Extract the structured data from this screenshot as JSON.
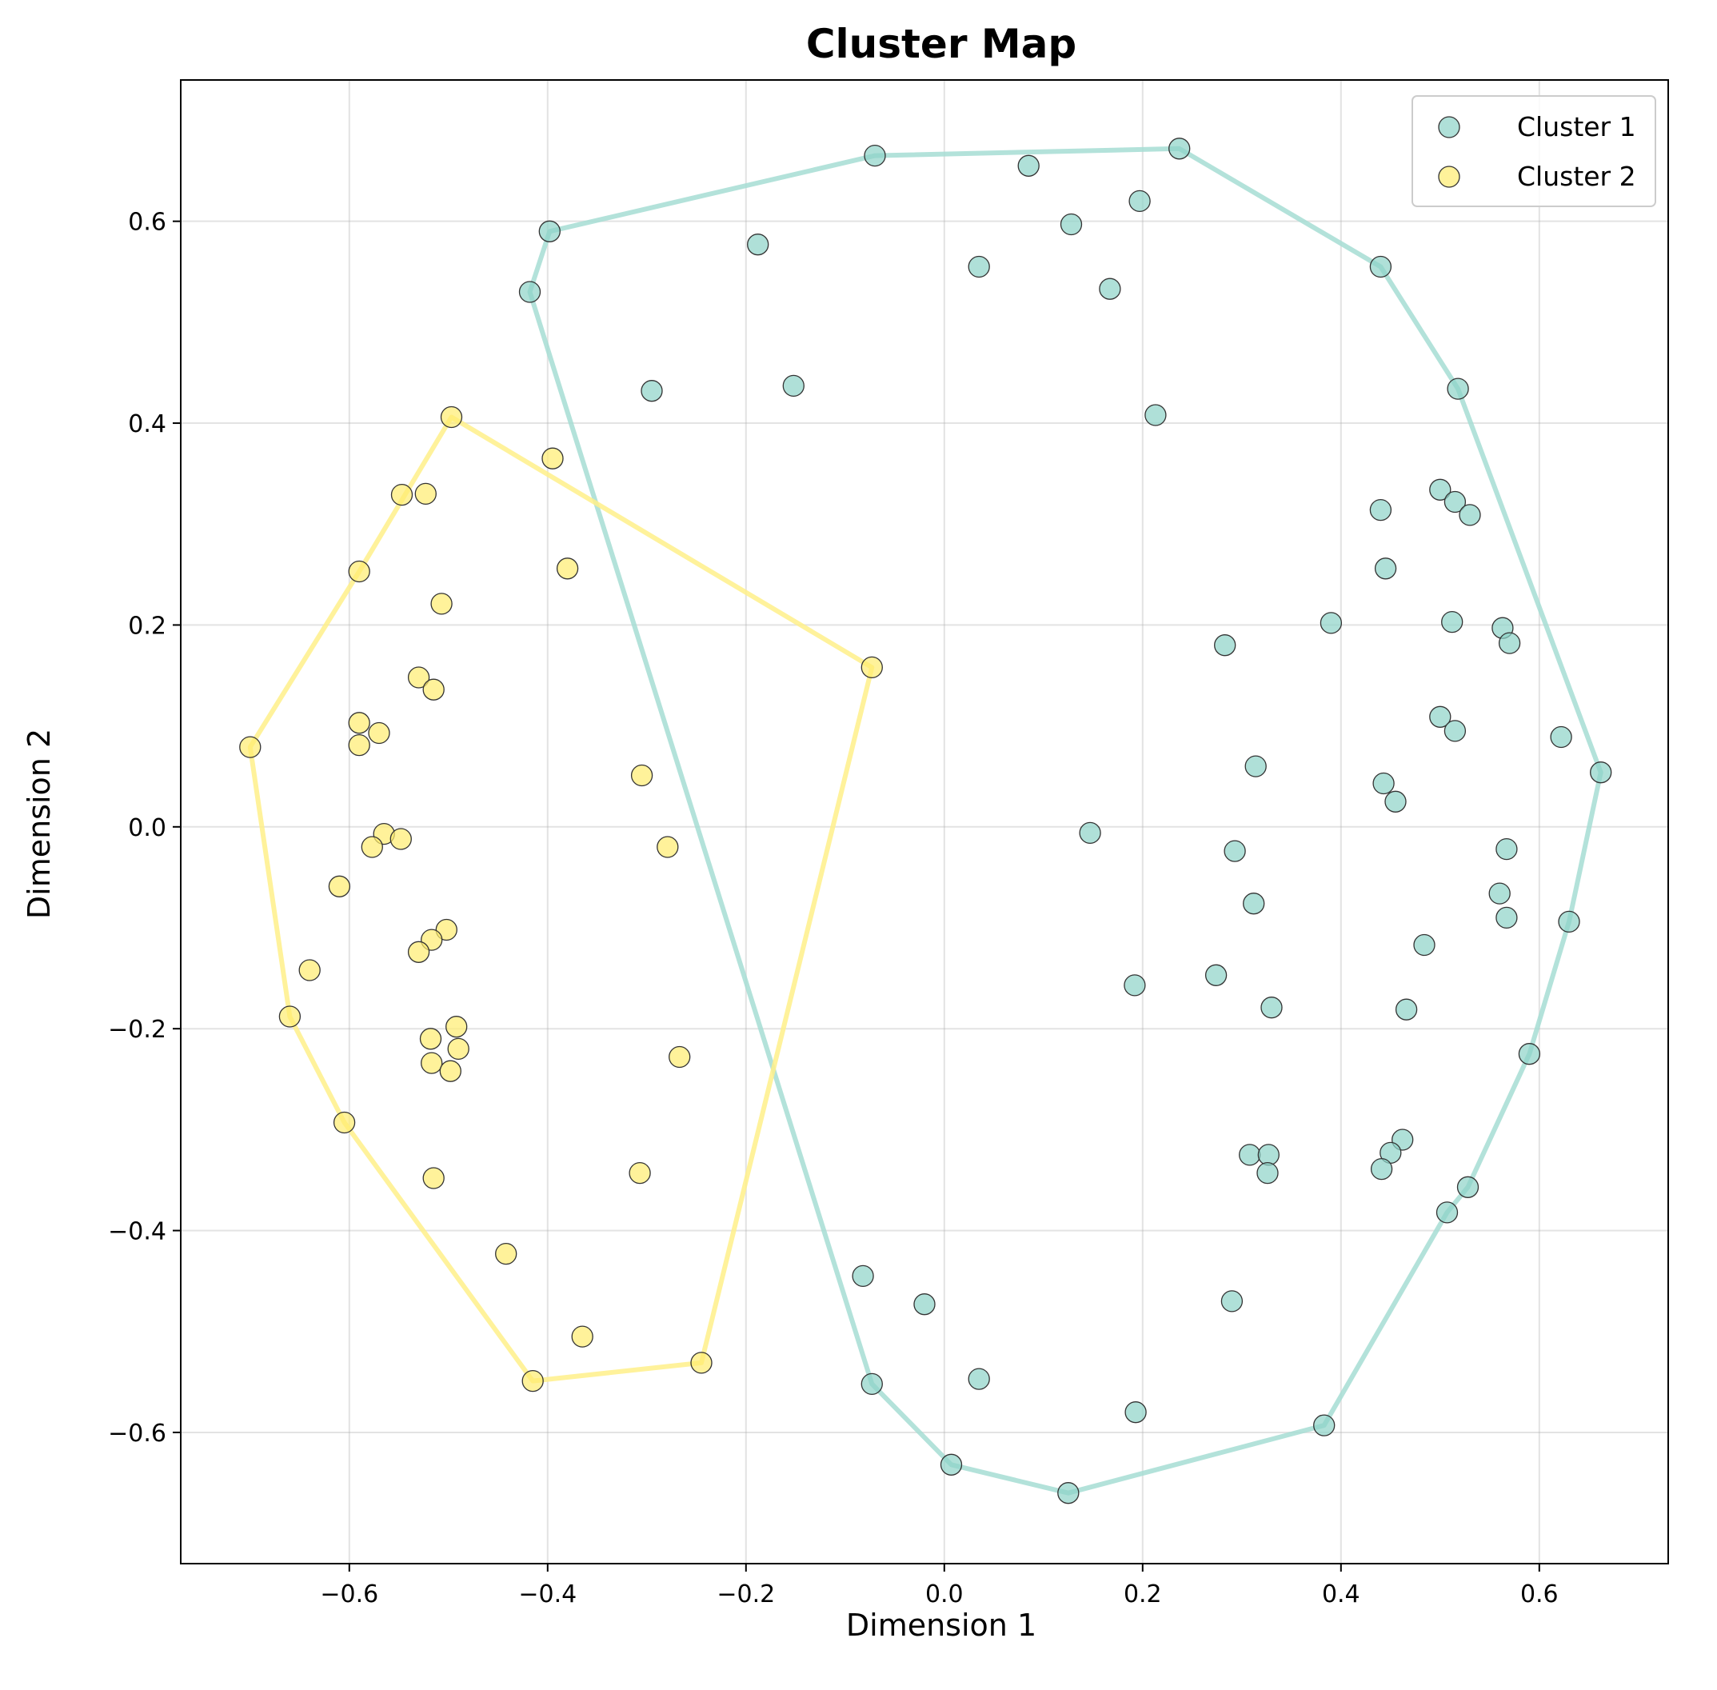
{
  "chart_data": {
    "type": "scatter",
    "title": "Cluster Map",
    "xlabel": "Dimension 1",
    "ylabel": "Dimension 2",
    "xlim": [
      -0.77,
      0.73
    ],
    "ylim": [
      -0.73,
      0.74
    ],
    "xticks": [
      -0.6,
      -0.4,
      -0.2,
      0.0,
      0.2,
      0.4,
      0.6
    ],
    "yticks": [
      -0.6,
      -0.4,
      -0.2,
      0.0,
      0.2,
      0.4,
      0.6
    ],
    "xtick_labels": [
      "−0.6",
      "−0.4",
      "−0.2",
      "0.0",
      "0.2",
      "0.4",
      "0.6"
    ],
    "ytick_labels": [
      "−0.6",
      "−0.4",
      "−0.2",
      "0.0",
      "0.2",
      "0.4",
      "0.6"
    ],
    "grid": true,
    "legend_position": "top-right",
    "series": [
      {
        "name": "Cluster 1",
        "color": "#8dd3c7",
        "hull_color": "#a6ddd3",
        "points": [
          [
            -0.07,
            0.665
          ],
          [
            0.085,
            0.655
          ],
          [
            0.237,
            0.672
          ],
          [
            0.197,
            0.62
          ],
          [
            0.128,
            0.597
          ],
          [
            -0.398,
            0.59
          ],
          [
            -0.188,
            0.577
          ],
          [
            0.035,
            0.555
          ],
          [
            0.167,
            0.533
          ],
          [
            0.44,
            0.555
          ],
          [
            -0.418,
            0.53
          ],
          [
            -0.295,
            0.432
          ],
          [
            -0.152,
            0.437
          ],
          [
            0.213,
            0.408
          ],
          [
            0.518,
            0.434
          ],
          [
            0.5,
            0.334
          ],
          [
            0.515,
            0.322
          ],
          [
            0.53,
            0.309
          ],
          [
            0.44,
            0.314
          ],
          [
            0.445,
            0.256
          ],
          [
            0.39,
            0.202
          ],
          [
            0.283,
            0.18
          ],
          [
            0.512,
            0.203
          ],
          [
            0.563,
            0.197
          ],
          [
            0.57,
            0.182
          ],
          [
            0.5,
            0.109
          ],
          [
            0.515,
            0.095
          ],
          [
            0.622,
            0.089
          ],
          [
            0.314,
            0.06
          ],
          [
            0.662,
            0.054
          ],
          [
            0.443,
            0.043
          ],
          [
            0.455,
            0.025
          ],
          [
            0.147,
            -0.006
          ],
          [
            0.293,
            -0.024
          ],
          [
            0.567,
            -0.022
          ],
          [
            0.312,
            -0.076
          ],
          [
            0.56,
            -0.066
          ],
          [
            0.567,
            -0.09
          ],
          [
            0.63,
            -0.094
          ],
          [
            0.484,
            -0.117
          ],
          [
            0.274,
            -0.147
          ],
          [
            0.192,
            -0.157
          ],
          [
            0.33,
            -0.179
          ],
          [
            0.466,
            -0.181
          ],
          [
            0.59,
            -0.225
          ],
          [
            0.308,
            -0.325
          ],
          [
            0.327,
            -0.325
          ],
          [
            0.326,
            -0.343
          ],
          [
            0.462,
            -0.31
          ],
          [
            0.45,
            -0.323
          ],
          [
            0.441,
            -0.339
          ],
          [
            0.528,
            -0.357
          ],
          [
            0.507,
            -0.382
          ],
          [
            -0.082,
            -0.445
          ],
          [
            -0.02,
            -0.473
          ],
          [
            0.29,
            -0.47
          ],
          [
            -0.073,
            -0.552
          ],
          [
            0.035,
            -0.547
          ],
          [
            0.193,
            -0.58
          ],
          [
            0.383,
            -0.593
          ],
          [
            0.007,
            -0.632
          ],
          [
            0.125,
            -0.66
          ]
        ],
        "hull": [
          [
            0.237,
            0.672
          ],
          [
            -0.07,
            0.665
          ],
          [
            -0.398,
            0.59
          ],
          [
            -0.418,
            0.53
          ],
          [
            -0.073,
            -0.552
          ],
          [
            0.007,
            -0.632
          ],
          [
            0.125,
            -0.66
          ],
          [
            0.383,
            -0.593
          ],
          [
            0.507,
            -0.382
          ],
          [
            0.528,
            -0.357
          ],
          [
            0.59,
            -0.225
          ],
          [
            0.63,
            -0.094
          ],
          [
            0.662,
            0.054
          ],
          [
            0.518,
            0.434
          ],
          [
            0.44,
            0.555
          ]
        ]
      },
      {
        "name": "Cluster 2",
        "color": "#ffed6f",
        "hull_color": "#fff08a",
        "points": [
          [
            -0.497,
            0.406
          ],
          [
            -0.395,
            0.365
          ],
          [
            -0.547,
            0.329
          ],
          [
            -0.523,
            0.33
          ],
          [
            -0.59,
            0.253
          ],
          [
            -0.38,
            0.256
          ],
          [
            -0.507,
            0.221
          ],
          [
            -0.073,
            0.158
          ],
          [
            -0.53,
            0.148
          ],
          [
            -0.515,
            0.136
          ],
          [
            -0.59,
            0.103
          ],
          [
            -0.57,
            0.093
          ],
          [
            -0.59,
            0.081
          ],
          [
            -0.7,
            0.079
          ],
          [
            -0.305,
            0.051
          ],
          [
            -0.565,
            -0.007
          ],
          [
            -0.548,
            -0.012
          ],
          [
            -0.577,
            -0.02
          ],
          [
            -0.279,
            -0.02
          ],
          [
            -0.61,
            -0.059
          ],
          [
            -0.502,
            -0.102
          ],
          [
            -0.517,
            -0.112
          ],
          [
            -0.53,
            -0.124
          ],
          [
            -0.64,
            -0.142
          ],
          [
            -0.66,
            -0.188
          ],
          [
            -0.492,
            -0.198
          ],
          [
            -0.518,
            -0.21
          ],
          [
            -0.49,
            -0.22
          ],
          [
            -0.517,
            -0.234
          ],
          [
            -0.498,
            -0.242
          ],
          [
            -0.267,
            -0.228
          ],
          [
            -0.605,
            -0.293
          ],
          [
            -0.307,
            -0.343
          ],
          [
            -0.515,
            -0.348
          ],
          [
            -0.442,
            -0.423
          ],
          [
            -0.365,
            -0.505
          ],
          [
            -0.245,
            -0.531
          ],
          [
            -0.415,
            -0.549
          ]
        ],
        "hull": [
          [
            -0.497,
            0.406
          ],
          [
            -0.073,
            0.158
          ],
          [
            -0.245,
            -0.531
          ],
          [
            -0.415,
            -0.549
          ],
          [
            -0.605,
            -0.293
          ],
          [
            -0.66,
            -0.188
          ],
          [
            -0.7,
            0.079
          ],
          [
            -0.59,
            0.253
          ]
        ]
      }
    ]
  }
}
